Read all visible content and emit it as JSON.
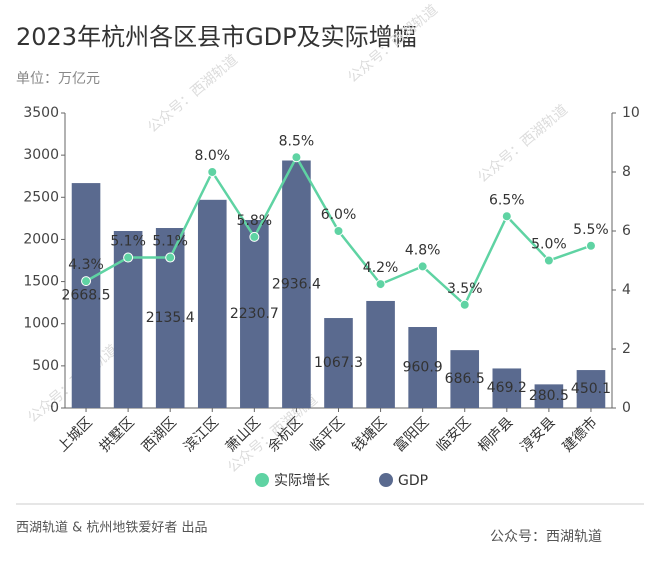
{
  "chart_data": {
    "type": "bar_line",
    "title": "2023年杭州各区县市GDP及实际增幅",
    "subtitle": "单位：万亿元",
    "footer": "西湖轨道 & 杭州地铁爱好者 出品",
    "watermark": "公众号：西湖轨道",
    "categories": [
      "上城区",
      "拱墅区",
      "西湖区",
      "滨江区",
      "萧山区",
      "余杭区",
      "临平区",
      "钱塘区",
      "富阳区",
      "临安区",
      "桐庐县",
      "淳安县",
      "建德市"
    ],
    "series": [
      {
        "name": "GDP",
        "type": "bar",
        "color": "#5a6a8f",
        "values": [
          2668.5,
          2100,
          2135.4,
          2470,
          2230.7,
          2936.4,
          1067.3,
          1270,
          960.9,
          686.5,
          469.2,
          280.5,
          450.1
        ],
        "value_labels": [
          "2668.5",
          null,
          "2135.4",
          null,
          "2230.7",
          "2936.4",
          "1067.3",
          null,
          "960.9",
          "686.5",
          "469.2",
          "280.5",
          "450.1"
        ]
      },
      {
        "name": "实际增长",
        "type": "line",
        "axis": "y2",
        "color": "#5fd3a3",
        "values": [
          4.3,
          5.1,
          5.1,
          8.0,
          5.8,
          8.5,
          6.0,
          4.2,
          4.8,
          3.5,
          6.5,
          5.0,
          5.5
        ],
        "value_labels": [
          "4.3%",
          "5.1%",
          "5.1%",
          "8.0%",
          "5.8%",
          "8.5%",
          "6.0%",
          "4.2%",
          "4.8%",
          "3.5%",
          "6.5%",
          "5.0%",
          "5.5%"
        ]
      }
    ],
    "ylim": [
      0,
      3500
    ],
    "yticks": [
      0,
      500,
      1000,
      1500,
      2000,
      2500,
      3000,
      3500
    ],
    "y2lim": [
      0,
      10
    ],
    "y2ticks": [
      0,
      2,
      4,
      6,
      8,
      10
    ],
    "legend": "bottom"
  }
}
